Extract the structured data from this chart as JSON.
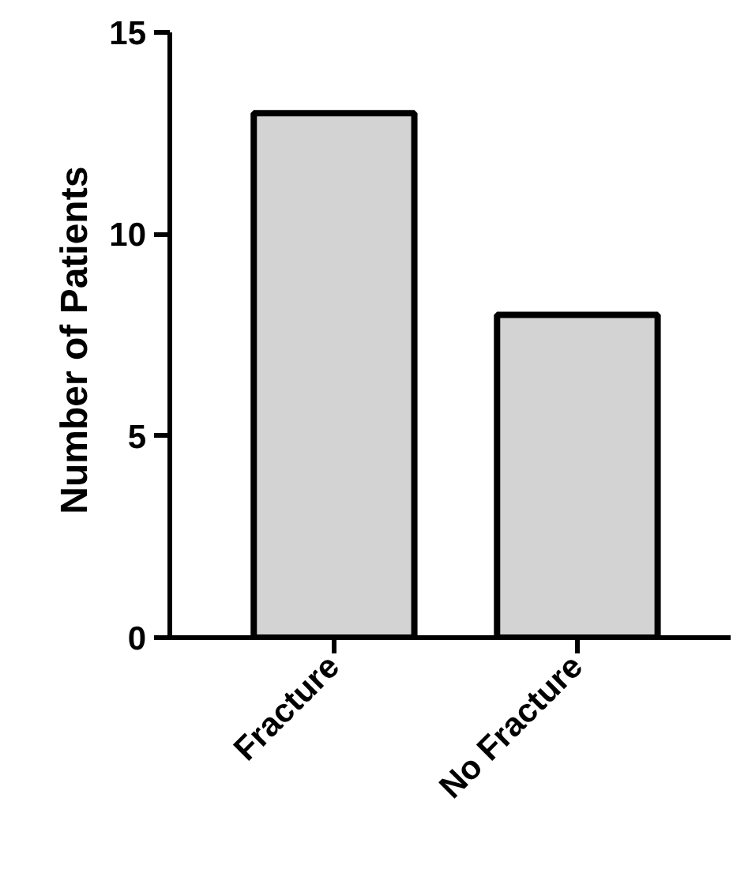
{
  "chart_data": {
    "type": "bar",
    "ylabel": "Number of  Patients",
    "categories": [
      "Fracture",
      "No Fracture"
    ],
    "values": [
      13,
      8
    ],
    "color": "#d3d3d3",
    "ylim": [
      0,
      15
    ],
    "yticks": [
      0,
      5,
      10,
      15
    ],
    "grid": false
  }
}
